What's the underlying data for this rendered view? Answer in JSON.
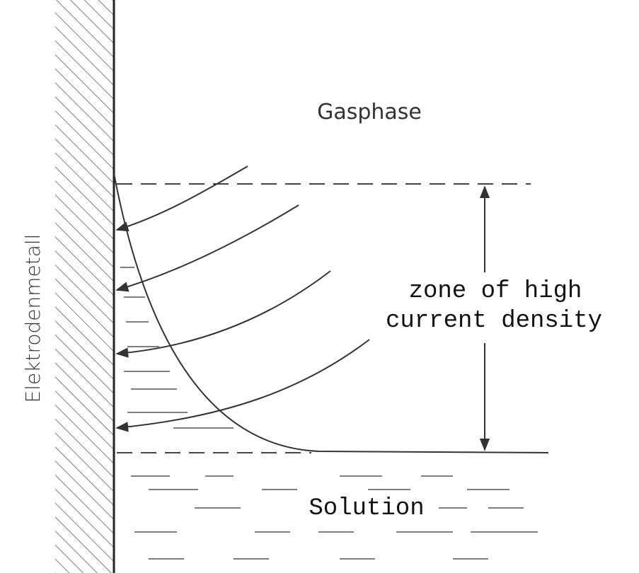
{
  "labels": {
    "gas": "Gasphase",
    "electrode": "Elektrodenmetall",
    "zone": [
      "zone of high",
      "current density"
    ],
    "solution": "Solution"
  }
}
